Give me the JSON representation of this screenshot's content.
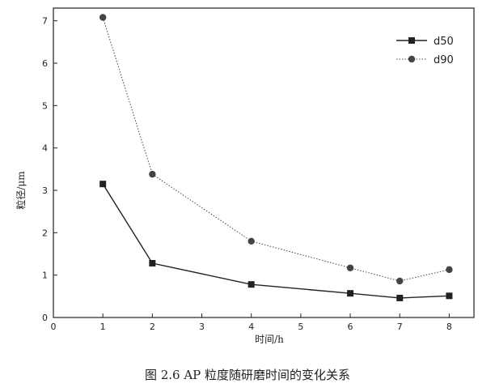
{
  "caption": "图 2.6 AP 粒度随研磨时间的变化关系",
  "chart_data": {
    "type": "line",
    "title": "",
    "xlabel": "时间/h",
    "ylabel": "粒径/μm",
    "xlim": [
      0,
      8.5
    ],
    "ylim": [
      0,
      7.3
    ],
    "xticks": [
      0,
      1,
      2,
      3,
      4,
      5,
      6,
      7,
      8
    ],
    "yticks": [
      0,
      1,
      2,
      3,
      4,
      5,
      6,
      7
    ],
    "legend_position": "top-right",
    "series": [
      {
        "name": "d50",
        "marker": "square",
        "dash": "solid",
        "color": "#222222",
        "x": [
          1,
          2,
          4,
          6,
          7,
          8
        ],
        "y": [
          3.15,
          1.28,
          0.78,
          0.57,
          0.46,
          0.51
        ]
      },
      {
        "name": "d90",
        "marker": "circle",
        "dash": "dotted",
        "color": "#444444",
        "x": [
          1,
          2,
          4,
          6,
          7,
          8
        ],
        "y": [
          7.08,
          3.38,
          1.8,
          1.17,
          0.86,
          1.13
        ]
      }
    ]
  }
}
